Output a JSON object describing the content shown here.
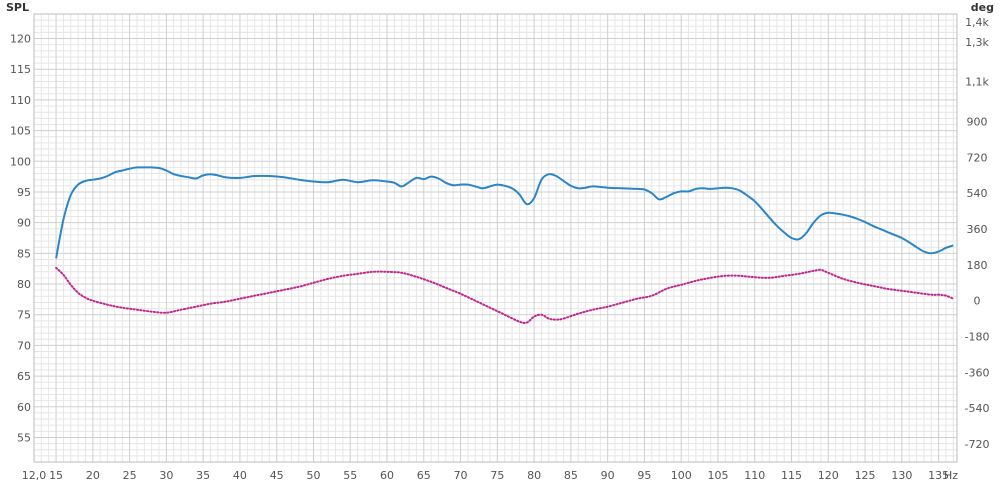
{
  "chart_data": {
    "type": "line",
    "y_left_label": "SPL",
    "y_right_label": "deg",
    "x_unit_label": "Hz",
    "xlim": [
      12,
      137.5
    ],
    "ylim_left": [
      51,
      124
    ],
    "ylim_right": [
      -810,
      1440
    ],
    "x_ticks": [
      {
        "value": 12,
        "label": "12,0"
      },
      {
        "value": 15,
        "label": "15"
      },
      {
        "value": 20,
        "label": "20"
      },
      {
        "value": 25,
        "label": "25"
      },
      {
        "value": 30,
        "label": "30"
      },
      {
        "value": 35,
        "label": "35"
      },
      {
        "value": 40,
        "label": "40"
      },
      {
        "value": 45,
        "label": "45"
      },
      {
        "value": 50,
        "label": "50"
      },
      {
        "value": 55,
        "label": "55"
      },
      {
        "value": 60,
        "label": "60"
      },
      {
        "value": 65,
        "label": "65"
      },
      {
        "value": 70,
        "label": "70"
      },
      {
        "value": 75,
        "label": "75"
      },
      {
        "value": 80,
        "label": "80"
      },
      {
        "value": 85,
        "label": "85"
      },
      {
        "value": 90,
        "label": "90"
      },
      {
        "value": 95,
        "label": "95"
      },
      {
        "value": 100,
        "label": "100"
      },
      {
        "value": 105,
        "label": "105"
      },
      {
        "value": 110,
        "label": "110"
      },
      {
        "value": 115,
        "label": "115"
      },
      {
        "value": 120,
        "label": "120"
      },
      {
        "value": 125,
        "label": "125"
      },
      {
        "value": 130,
        "label": "130"
      },
      {
        "value": 135,
        "label": "135"
      }
    ],
    "y_left_ticks": [
      {
        "value": 55,
        "label": "55"
      },
      {
        "value": 60,
        "label": "60"
      },
      {
        "value": 65,
        "label": "65"
      },
      {
        "value": 70,
        "label": "70"
      },
      {
        "value": 75,
        "label": "75"
      },
      {
        "value": 80,
        "label": "80"
      },
      {
        "value": 85,
        "label": "85"
      },
      {
        "value": 90,
        "label": "90"
      },
      {
        "value": 95,
        "label": "95"
      },
      {
        "value": 100,
        "label": "100"
      },
      {
        "value": 105,
        "label": "105"
      },
      {
        "value": 110,
        "label": "110"
      },
      {
        "value": 115,
        "label": "115"
      },
      {
        "value": 120,
        "label": "120"
      }
    ],
    "y_right_ticks": [
      {
        "value": -720,
        "label": "-720"
      },
      {
        "value": -540,
        "label": "-540"
      },
      {
        "value": -360,
        "label": "-360"
      },
      {
        "value": -180,
        "label": "-180"
      },
      {
        "value": 0,
        "label": "0"
      },
      {
        "value": 180,
        "label": "180"
      },
      {
        "value": 360,
        "label": "360"
      },
      {
        "value": 540,
        "label": "540"
      },
      {
        "value": 720,
        "label": "720"
      },
      {
        "value": 900,
        "label": "900"
      },
      {
        "value": 1100,
        "label": "1,1k"
      },
      {
        "value": 1300,
        "label": "1,3k"
      },
      {
        "value": 1400,
        "label": "1,4k"
      }
    ],
    "grid": true,
    "series": [
      {
        "axis": "left",
        "color": "#2a86c9",
        "style": "solid",
        "x": [
          15,
          16,
          17,
          18,
          19,
          20,
          21,
          22,
          23,
          24,
          25,
          26,
          27,
          28,
          29,
          30,
          31,
          32,
          33,
          34,
          35,
          36,
          37,
          38,
          40,
          42,
          44,
          46,
          48,
          50,
          52,
          54,
          56,
          58,
          60,
          61,
          62,
          63,
          64,
          65,
          66,
          67,
          68,
          69,
          70,
          71,
          72,
          73,
          74,
          75,
          76,
          77,
          78,
          79,
          80,
          81,
          82,
          83,
          84,
          85,
          86,
          87,
          88,
          90,
          92,
          94,
          95,
          96,
          97,
          98,
          99,
          100,
          101,
          102,
          103,
          104,
          105,
          106,
          107,
          108,
          109,
          110,
          111,
          112,
          113,
          114,
          115,
          116,
          117,
          118,
          119,
          120,
          121,
          122,
          123,
          124,
          125,
          126,
          127,
          128,
          129,
          130,
          131,
          132,
          133,
          134,
          135,
          136,
          137
        ],
        "y": [
          84.2,
          90.5,
          94.5,
          96.2,
          96.8,
          97.0,
          97.2,
          97.6,
          98.2,
          98.5,
          98.8,
          99.0,
          99.0,
          99.0,
          98.9,
          98.5,
          97.9,
          97.6,
          97.4,
          97.2,
          97.7,
          97.9,
          97.7,
          97.4,
          97.3,
          97.6,
          97.6,
          97.4,
          97.0,
          96.7,
          96.6,
          97.0,
          96.6,
          96.9,
          96.7,
          96.5,
          95.9,
          96.6,
          97.3,
          97.1,
          97.5,
          97.2,
          96.5,
          96.1,
          96.2,
          96.2,
          95.9,
          95.6,
          95.9,
          96.2,
          96.0,
          95.6,
          94.6,
          93.0,
          94.0,
          97.0,
          97.9,
          97.6,
          96.8,
          96.0,
          95.6,
          95.7,
          95.9,
          95.7,
          95.6,
          95.5,
          95.4,
          94.8,
          93.8,
          94.2,
          94.8,
          95.1,
          95.1,
          95.5,
          95.6,
          95.5,
          95.6,
          95.7,
          95.6,
          95.2,
          94.4,
          93.5,
          92.2,
          90.8,
          89.5,
          88.4,
          87.5,
          87.3,
          88.3,
          90.0,
          91.2,
          91.6,
          91.5,
          91.3,
          91.0,
          90.6,
          90.1,
          89.5,
          89.0,
          88.5,
          88.0,
          87.5,
          86.8,
          86.0,
          85.3,
          85.0,
          85.3,
          85.9,
          86.3
        ]
      },
      {
        "axis": "right",
        "color": "#c2248f",
        "style": "dotted",
        "x": [
          15,
          16,
          17,
          18,
          19,
          20,
          22,
          24,
          26,
          28,
          30,
          32,
          34,
          36,
          38,
          40,
          42,
          44,
          46,
          48,
          50,
          52,
          54,
          56,
          58,
          60,
          62,
          64,
          66,
          68,
          70,
          72,
          74,
          76,
          78,
          79,
          80,
          81,
          82,
          83,
          84,
          86,
          88,
          90,
          92,
          94,
          96,
          98,
          100,
          102,
          104,
          106,
          108,
          110,
          112,
          114,
          116,
          118,
          119,
          120,
          122,
          124,
          126,
          128,
          130,
          132,
          134,
          135,
          136,
          137
        ],
        "y": [
          165,
          130,
          80,
          40,
          15,
          0,
          -20,
          -35,
          -45,
          -55,
          -60,
          -45,
          -30,
          -15,
          -5,
          10,
          25,
          40,
          55,
          70,
          90,
          110,
          125,
          135,
          145,
          145,
          140,
          120,
          95,
          65,
          35,
          0,
          -35,
          -70,
          -105,
          -110,
          -80,
          -70,
          -90,
          -95,
          -90,
          -65,
          -45,
          -30,
          -10,
          10,
          25,
          60,
          80,
          100,
          115,
          125,
          125,
          118,
          115,
          125,
          135,
          150,
          155,
          140,
          110,
          90,
          75,
          60,
          50,
          40,
          30,
          30,
          25,
          10
        ]
      }
    ]
  }
}
